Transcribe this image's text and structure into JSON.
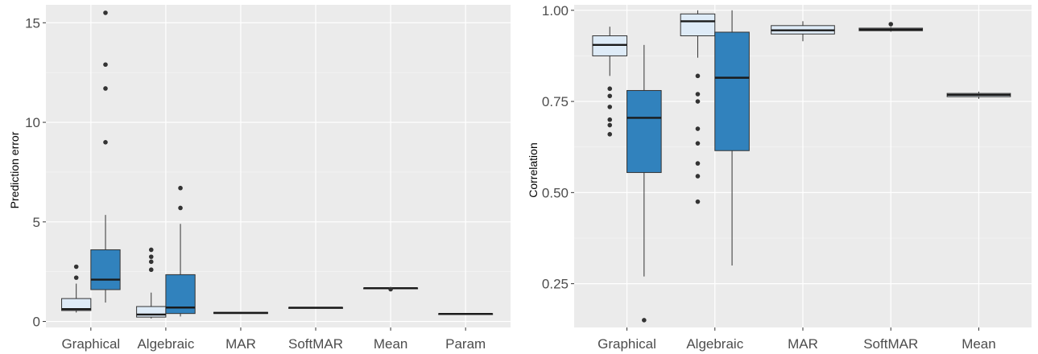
{
  "colors": {
    "panel_bg": "#ebebeb",
    "grid_major": "#ffffff",
    "light_fill": "#deebf7",
    "dark_fill": "#3182bd",
    "whisker": "#333333",
    "tick_text": "#4d4d4d"
  },
  "chart_data": [
    {
      "type": "box",
      "ylabel": "Prediction error",
      "xlabel": "",
      "ylim": [
        -0.3,
        15.9
      ],
      "yticks": [
        0,
        5,
        10,
        15
      ],
      "ytick_labels": [
        "0",
        "5",
        "10",
        "15"
      ],
      "categories": [
        "Graphical",
        "Algebraic",
        "MAR",
        "SoftMAR",
        "Mean",
        "Param"
      ],
      "series": [
        {
          "fill": "light",
          "boxes": [
            {
              "category": "Graphical",
              "min": 0.45,
              "q1": 0.55,
              "median": 0.62,
              "q3": 1.15,
              "max": 1.9,
              "outliers": [
                2.2,
                2.75
              ]
            },
            {
              "category": "Algebraic",
              "min": 0.15,
              "q1": 0.22,
              "median": 0.35,
              "q3": 0.75,
              "max": 1.45,
              "outliers": [
                2.6,
                3.0,
                3.25,
                3.6
              ]
            }
          ]
        },
        {
          "fill": "dark",
          "boxes": [
            {
              "category": "Graphical",
              "min": 0.95,
              "q1": 1.6,
              "median": 2.1,
              "q3": 3.6,
              "max": 5.35,
              "outliers": [
                9.0,
                11.7,
                12.9,
                15.5
              ]
            },
            {
              "category": "Algebraic",
              "min": 0.25,
              "q1": 0.4,
              "median": 0.7,
              "q3": 2.35,
              "max": 4.9,
              "outliers": [
                5.7,
                6.7
              ]
            }
          ]
        },
        {
          "fill": "single",
          "boxes": [
            {
              "category": "MAR",
              "min": 0.38,
              "q1": 0.4,
              "median": 0.43,
              "q3": 0.46,
              "max": 0.48,
              "outliers": []
            },
            {
              "category": "SoftMAR",
              "min": 0.67,
              "q1": 0.68,
              "median": 0.69,
              "q3": 0.7,
              "max": 0.71,
              "outliers": []
            },
            {
              "category": "Mean",
              "min": 1.64,
              "q1": 1.65,
              "median": 1.67,
              "q3": 1.68,
              "max": 1.69,
              "outliers": [
                1.62
              ]
            },
            {
              "category": "Param",
              "min": 0.36,
              "q1": 0.37,
              "median": 0.38,
              "q3": 0.39,
              "max": 0.4,
              "outliers": []
            }
          ]
        }
      ]
    },
    {
      "type": "box",
      "ylabel": "Correlation",
      "xlabel": "",
      "ylim": [
        0.13,
        1.015
      ],
      "yticks": [
        0.25,
        0.5,
        0.75,
        1.0
      ],
      "ytick_labels": [
        "0.25",
        "0.50",
        "0.75",
        "1.00"
      ],
      "categories": [
        "Graphical",
        "Algebraic",
        "MAR",
        "SoftMAR",
        "Mean"
      ],
      "series": [
        {
          "fill": "light",
          "boxes": [
            {
              "category": "Graphical",
              "min": 0.82,
              "q1": 0.875,
              "median": 0.905,
              "q3": 0.93,
              "max": 0.955,
              "outliers": [
                0.66,
                0.685,
                0.7,
                0.735,
                0.765,
                0.785
              ]
            },
            {
              "category": "Algebraic",
              "min": 0.87,
              "q1": 0.93,
              "median": 0.97,
              "q3": 0.99,
              "max": 1.0,
              "outliers": [
                0.475,
                0.545,
                0.58,
                0.635,
                0.675,
                0.75,
                0.77,
                0.82
              ]
            }
          ]
        },
        {
          "fill": "dark",
          "boxes": [
            {
              "category": "Graphical",
              "min": 0.27,
              "q1": 0.555,
              "median": 0.705,
              "q3": 0.78,
              "max": 0.905,
              "outliers": [
                0.15
              ]
            },
            {
              "category": "Algebraic",
              "min": 0.3,
              "q1": 0.615,
              "median": 0.815,
              "q3": 0.94,
              "max": 1.0,
              "outliers": []
            }
          ]
        },
        {
          "fill": "single",
          "boxes": [
            {
              "category": "MAR",
              "min": 0.915,
              "q1": 0.935,
              "median": 0.945,
              "q3": 0.958,
              "max": 0.97,
              "outliers": []
            },
            {
              "category": "SoftMAR",
              "min": 0.941,
              "q1": 0.944,
              "median": 0.947,
              "q3": 0.951,
              "max": 0.954,
              "outliers": [
                0.962
              ]
            },
            {
              "category": "Mean",
              "min": 0.757,
              "q1": 0.763,
              "median": 0.768,
              "q3": 0.772,
              "max": 0.777,
              "outliers": []
            }
          ]
        }
      ]
    }
  ]
}
